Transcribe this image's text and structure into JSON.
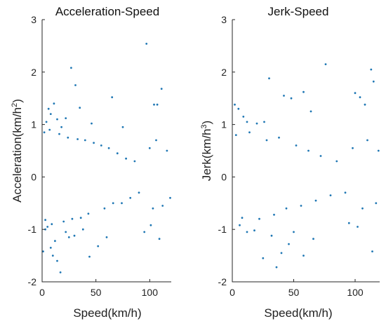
{
  "chart_data": [
    {
      "type": "scatter",
      "title": "Acceleration-Speed",
      "xlabel": "Speed(km/h)",
      "ylabel_main": "Acceleration(km/h",
      "ylabel_sup": "2",
      "ylabel_tail": ")",
      "xlim": [
        0,
        120
      ],
      "ylim": [
        -2,
        3
      ],
      "xticks": [
        0,
        50,
        100
      ],
      "yticks": [
        -2,
        -1,
        0,
        1,
        2,
        3
      ],
      "color": "#1f77b4",
      "grid": false,
      "points": [
        [
          6,
          1.3
        ],
        [
          8,
          1.2
        ],
        [
          11,
          1.4
        ],
        [
          14,
          1.1
        ],
        [
          4,
          1.05
        ],
        [
          18,
          0.95
        ],
        [
          22,
          1.12
        ],
        [
          27,
          2.08
        ],
        [
          31,
          1.75
        ],
        [
          35,
          1.32
        ],
        [
          46,
          1.02
        ],
        [
          65,
          1.52
        ],
        [
          75,
          0.95
        ],
        [
          97,
          2.54
        ],
        [
          104,
          1.38
        ],
        [
          107,
          1.38
        ],
        [
          111,
          1.68
        ],
        [
          1,
          -1.42
        ],
        [
          3,
          -1.0
        ],
        [
          5,
          -0.95
        ],
        [
          8,
          -1.35
        ],
        [
          10,
          -1.5
        ],
        [
          14,
          -1.6
        ],
        [
          17,
          -1.82
        ],
        [
          12,
          -1.22
        ],
        [
          22,
          -1.05
        ],
        [
          25,
          -1.15
        ],
        [
          30,
          -1.12
        ],
        [
          38,
          -1.0
        ],
        [
          44,
          -1.52
        ],
        [
          52,
          -1.32
        ],
        [
          60,
          -1.15
        ],
        [
          95,
          -1.05
        ],
        [
          101,
          -0.92
        ],
        [
          109,
          -1.18
        ],
        [
          2,
          0.85
        ],
        [
          3,
          -0.82
        ],
        [
          7,
          0.9
        ],
        [
          9,
          -0.9
        ],
        [
          16,
          0.82
        ],
        [
          20,
          -0.85
        ],
        [
          24,
          0.75
        ],
        [
          28,
          -0.8
        ],
        [
          33,
          0.72
        ],
        [
          36,
          -0.78
        ],
        [
          40,
          0.7
        ],
        [
          43,
          -0.7
        ],
        [
          48,
          0.65
        ],
        [
          55,
          0.6
        ],
        [
          58,
          -0.6
        ],
        [
          62,
          0.55
        ],
        [
          66,
          -0.5
        ],
        [
          70,
          0.45
        ],
        [
          74,
          -0.5
        ],
        [
          78,
          0.35
        ],
        [
          82,
          -0.4
        ],
        [
          86,
          0.3
        ],
        [
          90,
          -0.3
        ],
        [
          100,
          0.55
        ],
        [
          103,
          -0.6
        ],
        [
          106,
          0.7
        ],
        [
          112,
          -0.55
        ],
        [
          116,
          0.5
        ],
        [
          119,
          -0.4
        ]
      ]
    },
    {
      "type": "scatter",
      "title": "Jerk-Speed",
      "xlabel": "Speed(km/h)",
      "ylabel_main": "Jerk(km/h",
      "ylabel_sup": "3",
      "ylabel_tail": ")",
      "xlim": [
        0,
        120
      ],
      "ylim": [
        -2,
        3
      ],
      "xticks": [
        0,
        50,
        100
      ],
      "yticks": [
        -2,
        -1,
        0,
        1,
        2,
        3
      ],
      "color": "#1f77b4",
      "grid": false,
      "points": [
        [
          2,
          1.38
        ],
        [
          5,
          1.3
        ],
        [
          9,
          1.15
        ],
        [
          12,
          1.05
        ],
        [
          20,
          1.02
        ],
        [
          26,
          1.05
        ],
        [
          30,
          1.88
        ],
        [
          42,
          1.55
        ],
        [
          48,
          1.5
        ],
        [
          58,
          1.62
        ],
        [
          64,
          1.25
        ],
        [
          76,
          2.15
        ],
        [
          100,
          1.6
        ],
        [
          104,
          1.52
        ],
        [
          108,
          1.38
        ],
        [
          113,
          2.05
        ],
        [
          115,
          1.82
        ],
        [
          25,
          -1.55
        ],
        [
          36,
          -1.72
        ],
        [
          40,
          -1.45
        ],
        [
          46,
          -1.28
        ],
        [
          58,
          -1.5
        ],
        [
          66,
          -1.18
        ],
        [
          6,
          -0.92
        ],
        [
          12,
          -1.05
        ],
        [
          18,
          -1.02
        ],
        [
          32,
          -1.12
        ],
        [
          50,
          -1.05
        ],
        [
          95,
          -0.88
        ],
        [
          102,
          -0.95
        ],
        [
          114,
          -1.42
        ],
        [
          3,
          0.8
        ],
        [
          8,
          -0.78
        ],
        [
          14,
          0.85
        ],
        [
          22,
          -0.8
        ],
        [
          28,
          0.7
        ],
        [
          34,
          -0.72
        ],
        [
          38,
          0.75
        ],
        [
          44,
          -0.6
        ],
        [
          52,
          0.6
        ],
        [
          56,
          -0.55
        ],
        [
          62,
          0.5
        ],
        [
          68,
          -0.45
        ],
        [
          72,
          0.4
        ],
        [
          80,
          -0.35
        ],
        [
          85,
          0.3
        ],
        [
          92,
          -0.3
        ],
        [
          98,
          0.55
        ],
        [
          106,
          -0.6
        ],
        [
          110,
          0.7
        ],
        [
          117,
          -0.5
        ],
        [
          119,
          0.5
        ]
      ]
    }
  ]
}
